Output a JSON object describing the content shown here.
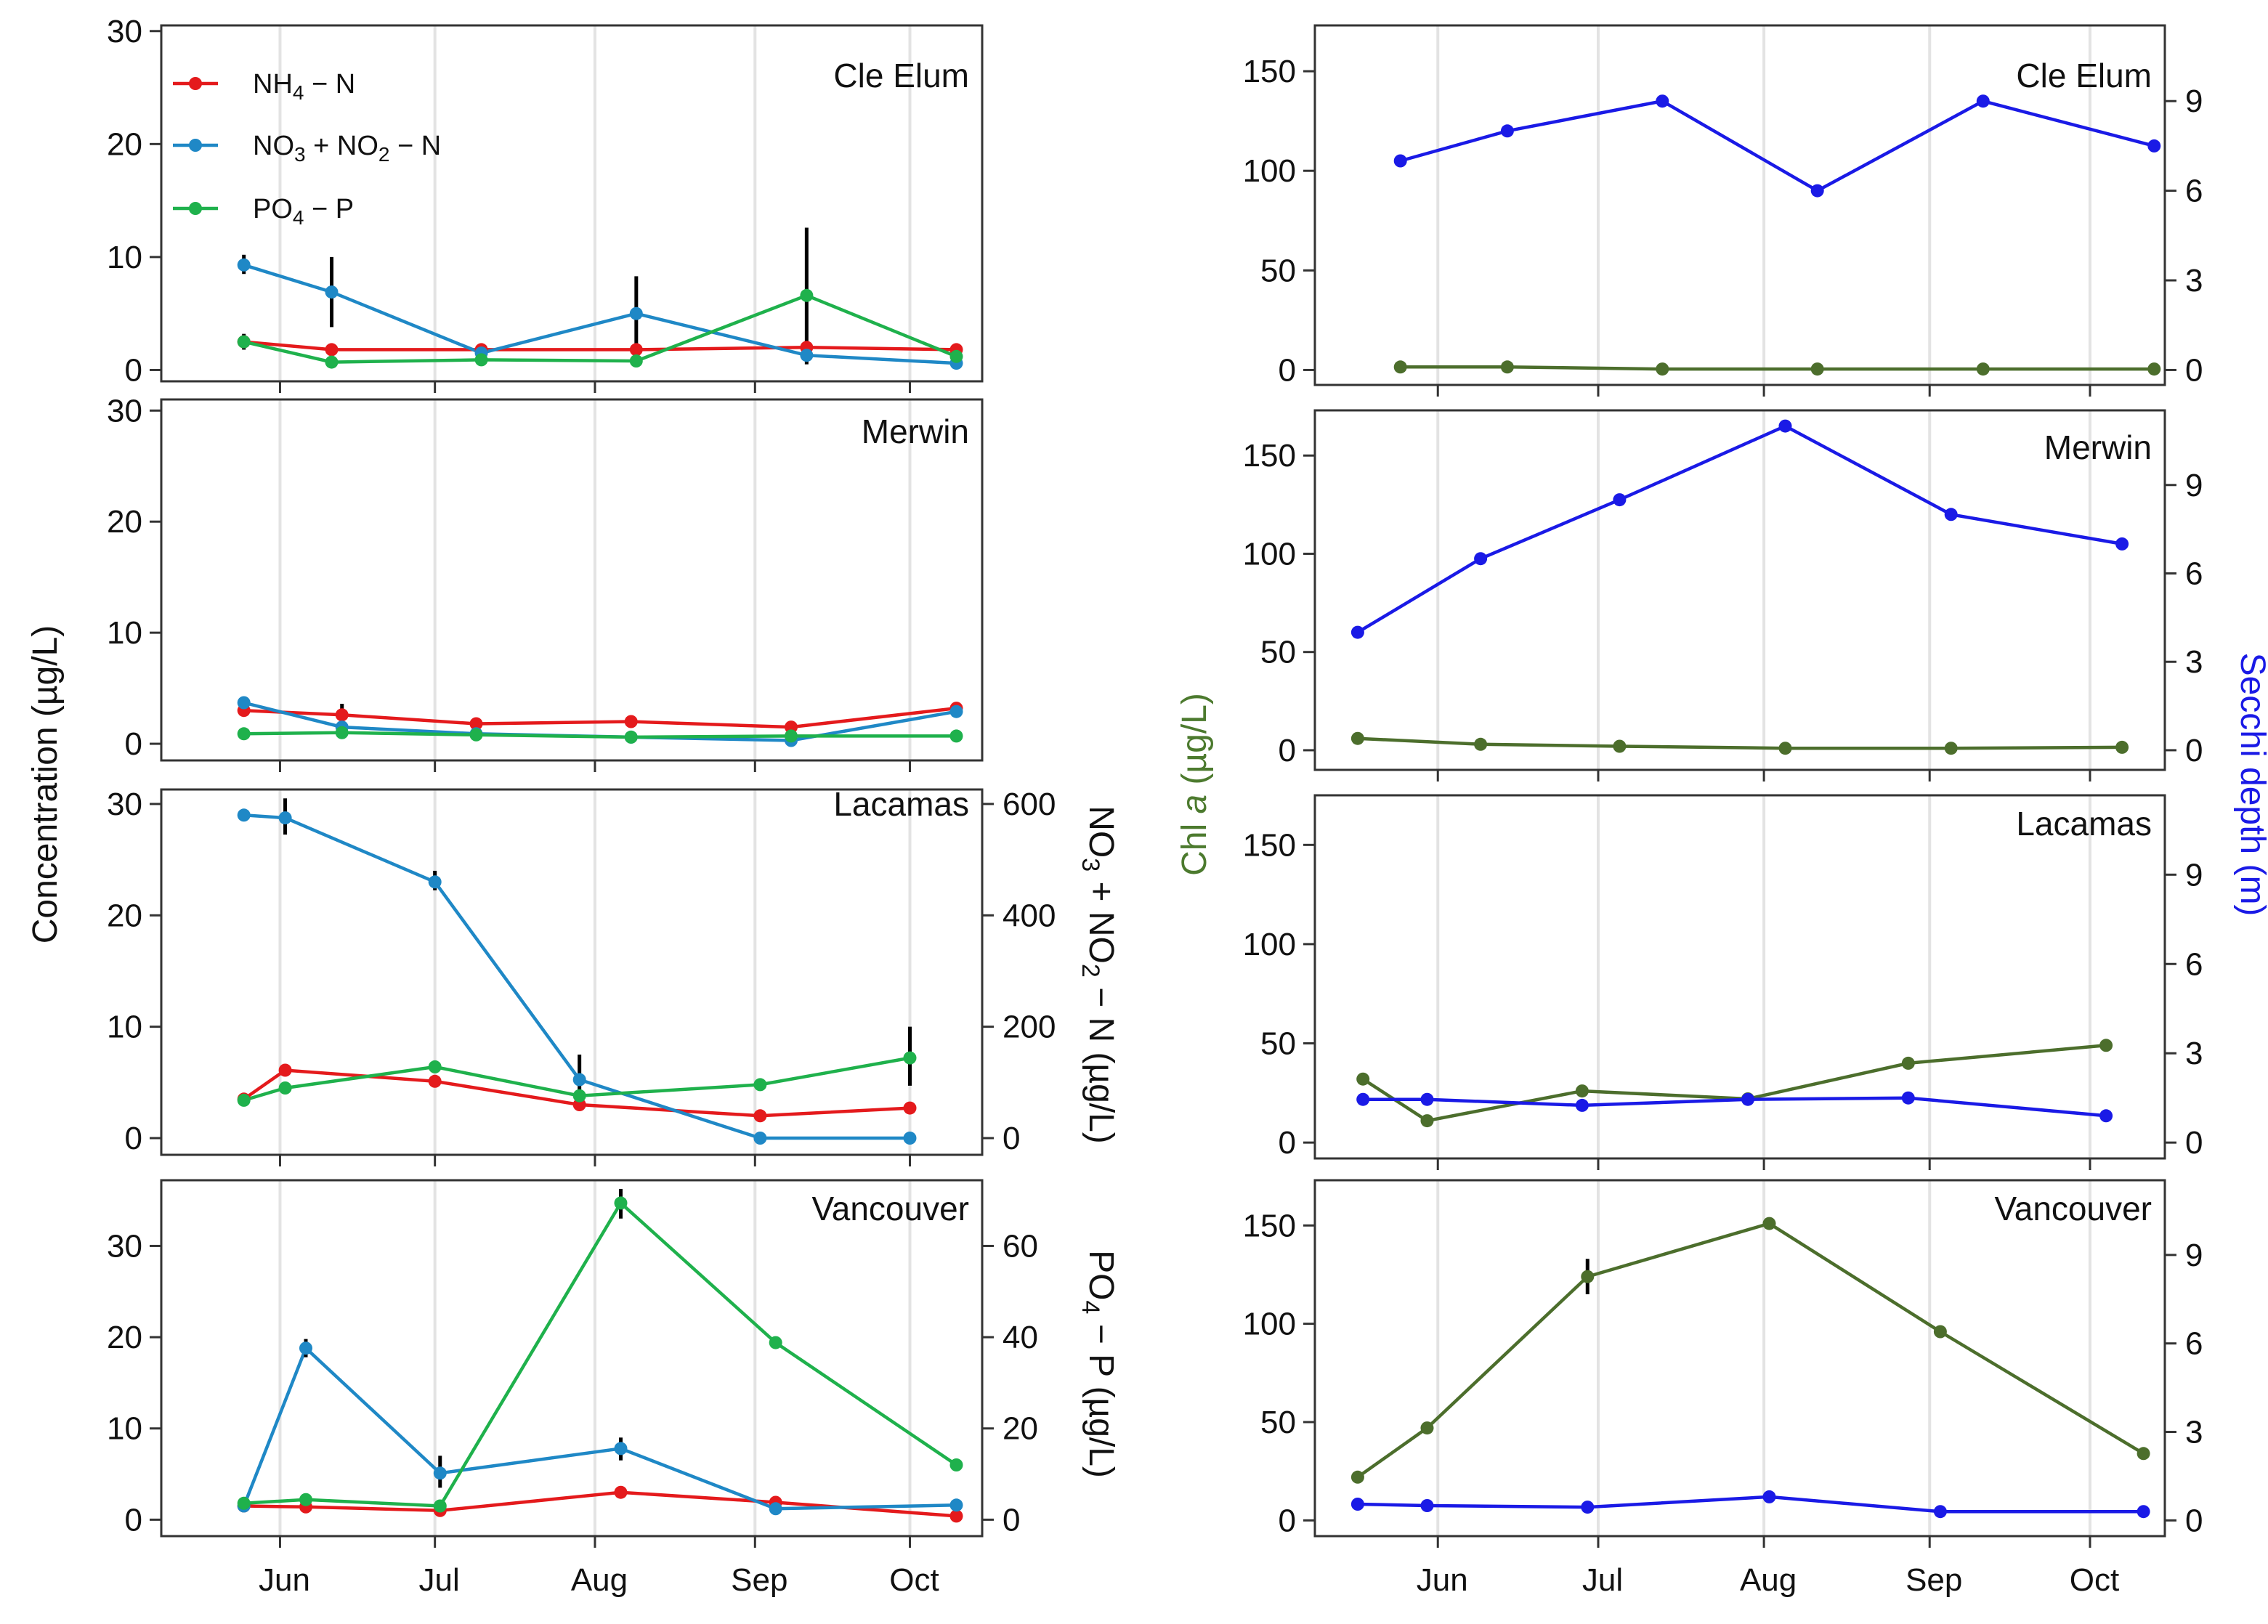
{
  "chart_data": [
    {
      "type": "line",
      "id": "L1",
      "title": "Cle Elum",
      "ylim": [
        -1,
        30.5
      ],
      "yticks": [
        0,
        10,
        20,
        30
      ],
      "xlim": [
        129,
        288
      ],
      "x_ticks": {
        "labels": [
          "Jun",
          "Jul",
          "Aug",
          "Sep",
          "Oct"
        ],
        "positions": [
          152,
          182,
          213,
          244,
          274
        ]
      },
      "series": [
        {
          "name": "NH4-N",
          "color": "#e41a1c",
          "x": [
            145,
            162,
            191,
            221,
            254,
            283
          ],
          "y": [
            2.5,
            1.8,
            1.8,
            1.8,
            2.0,
            1.8
          ]
        },
        {
          "name": "NO3+NO2-N",
          "color": "#1f88c6",
          "x": [
            145,
            162,
            191,
            221,
            254,
            283
          ],
          "y": [
            9.3,
            6.9,
            1.5,
            5.0,
            1.3,
            0.6
          ]
        },
        {
          "name": "PO4-P",
          "color": "#1fb14c",
          "x": [
            145,
            162,
            191,
            221,
            254,
            283
          ],
          "y": [
            2.5,
            0.7,
            0.9,
            0.8,
            6.6,
            1.2
          ]
        }
      ],
      "error_bars": [
        {
          "x": 145,
          "low": 8.5,
          "high": 10.2
        },
        {
          "x": 162,
          "low": 3.8,
          "high": 10.0
        },
        {
          "x": 221,
          "low": 1.0,
          "high": 8.3
        },
        {
          "x": 254,
          "low": 0.5,
          "high": 12.6
        },
        {
          "x": 145,
          "low": 1.8,
          "high": 3.2
        }
      ]
    },
    {
      "type": "line",
      "id": "L2",
      "title": "Merwin",
      "ylim": [
        -1.5,
        31
      ],
      "yticks": [
        0,
        10,
        20,
        30
      ],
      "xlim": [
        129,
        288
      ],
      "x_ticks": {
        "labels": [
          "Jun",
          "Jul",
          "Aug",
          "Sep",
          "Oct"
        ],
        "positions": [
          152,
          182,
          213,
          244,
          274
        ]
      },
      "series": [
        {
          "name": "NH4-N",
          "color": "#e41a1c",
          "x": [
            145,
            164,
            190,
            220,
            251,
            283
          ],
          "y": [
            3.0,
            2.6,
            1.8,
            2.0,
            1.5,
            3.2
          ]
        },
        {
          "name": "NO3+NO2-N",
          "color": "#1f88c6",
          "x": [
            145,
            164,
            190,
            220,
            251,
            283
          ],
          "y": [
            3.7,
            1.5,
            0.9,
            0.6,
            0.3,
            2.9
          ]
        },
        {
          "name": "PO4-P",
          "color": "#1fb14c",
          "x": [
            145,
            164,
            190,
            220,
            251,
            283
          ],
          "y": [
            0.9,
            1.0,
            0.8,
            0.6,
            0.7,
            0.7
          ]
        }
      ],
      "error_bars": [
        {
          "x": 164,
          "low": 1.9,
          "high": 3.6
        }
      ]
    },
    {
      "type": "line",
      "id": "L3",
      "title": "Lacamas",
      "ylim": [
        -1.5,
        31.3
      ],
      "yticks": [
        0,
        10,
        20,
        30
      ],
      "right_axis": {
        "label": "NO3+NO2-N (µg/L)",
        "ylim": [
          -30,
          626
        ],
        "yticks": [
          0,
          200,
          400,
          600
        ]
      },
      "xlim": [
        129,
        288
      ],
      "x_ticks": {
        "labels": [
          "Jun",
          "Jul",
          "Aug",
          "Sep",
          "Oct"
        ],
        "positions": [
          152,
          182,
          213,
          244,
          274
        ]
      },
      "series": [
        {
          "name": "NH4-N",
          "color": "#e41a1c",
          "x": [
            145,
            153,
            182,
            210,
            245,
            274
          ],
          "y": [
            3.5,
            6.1,
            5.1,
            3.0,
            2.0,
            2.7
          ]
        },
        {
          "name": "NO3+NO2-N",
          "color": "#1f88c6",
          "axis": "right",
          "x": [
            145,
            153,
            182,
            210,
            245,
            274
          ],
          "y": [
            580,
            575,
            460,
            105,
            0,
            0
          ]
        },
        {
          "name": "PO4-P",
          "color": "#1fb14c",
          "x": [
            145,
            153,
            182,
            210,
            245,
            274
          ],
          "y": [
            3.4,
            4.5,
            6.4,
            3.8,
            4.8,
            7.2
          ]
        }
      ],
      "error_bars": [
        {
          "x": 153,
          "axis": "right",
          "low": 545,
          "high": 610
        },
        {
          "x": 182,
          "axis": "right",
          "low": 445,
          "high": 480
        },
        {
          "x": 210,
          "axis": "right",
          "low": 80,
          "high": 150
        },
        {
          "x": 274,
          "low": 4.7,
          "high": 10.0
        }
      ]
    },
    {
      "type": "line",
      "id": "L4",
      "title": "Vancouver",
      "ylim": [
        -1.8,
        37.2
      ],
      "yticks": [
        0,
        10,
        20,
        30
      ],
      "right_axis": {
        "label": "PO4-P (µg/L)",
        "ylim": [
          -3.6,
          74.4
        ],
        "yticks": [
          0,
          20,
          40,
          60
        ]
      },
      "xlim": [
        129,
        288
      ],
      "x_ticks": {
        "labels": [
          "Jun",
          "Jul",
          "Aug",
          "Sep",
          "Oct"
        ],
        "positions": [
          152,
          182,
          213,
          244,
          274
        ]
      },
      "series": [
        {
          "name": "NH4-N",
          "color": "#e41a1c",
          "x": [
            145,
            157,
            183,
            218,
            248,
            283
          ],
          "y": [
            1.5,
            1.4,
            1.0,
            3.0,
            1.9,
            0.4
          ]
        },
        {
          "name": "NO3+NO2-N",
          "color": "#1f88c6",
          "x": [
            145,
            157,
            183,
            218,
            248,
            283
          ],
          "y": [
            1.5,
            18.8,
            5.1,
            7.8,
            1.2,
            1.6
          ]
        },
        {
          "name": "PO4-P",
          "color": "#1fb14c",
          "axis": "right",
          "x": [
            145,
            157,
            183,
            218,
            248,
            283
          ],
          "y": [
            3.6,
            4.4,
            3.0,
            69.4,
            38.8,
            12.0
          ]
        }
      ],
      "error_bars": [
        {
          "x": 157,
          "low": 17.8,
          "high": 19.8
        },
        {
          "x": 183,
          "low": 3.5,
          "high": 7.0
        },
        {
          "x": 218,
          "low": 6.5,
          "high": 9.0
        },
        {
          "x": 218,
          "axis": "right",
          "low": 66.0,
          "high": 72.5
        }
      ]
    },
    {
      "type": "line",
      "id": "R1",
      "title": "Cle Elum",
      "ylim": [
        -7.5,
        173
      ],
      "yticks": [
        0,
        50,
        100,
        150
      ],
      "right_axis": {
        "ylim": [
          -0.5,
          11.533
        ],
        "yticks": [
          0,
          3,
          6,
          9
        ]
      },
      "xlim": [
        129,
        288
      ],
      "x_ticks": {
        "labels": [
          "Jun",
          "Jul",
          "Aug",
          "Sep",
          "Oct"
        ],
        "positions": [
          152,
          182,
          213,
          244,
          274
        ]
      },
      "series": [
        {
          "name": "Chl a",
          "color": "#4c6e2c",
          "x": [
            145,
            165,
            194,
            223,
            254,
            286
          ],
          "y": [
            1.5,
            1.5,
            0.5,
            0.5,
            0.5,
            0.5
          ]
        },
        {
          "name": "Secchi depth",
          "color": "#1a1ae6",
          "axis": "right",
          "x": [
            145,
            165,
            194,
            223,
            254,
            286
          ],
          "y": [
            7.0,
            8.0,
            9.0,
            6.0,
            9.0,
            7.5
          ]
        }
      ],
      "error_bars": []
    },
    {
      "type": "line",
      "id": "R2",
      "title": "Merwin",
      "ylim": [
        -10,
        173
      ],
      "yticks": [
        0,
        50,
        100,
        150
      ],
      "right_axis": {
        "ylim": [
          -0.667,
          11.533
        ],
        "yticks": [
          0,
          3,
          6,
          9
        ]
      },
      "xlim": [
        129,
        288
      ],
      "x_ticks": {
        "labels": [
          "Jun",
          "Jul",
          "Aug",
          "Sep",
          "Oct"
        ],
        "positions": [
          152,
          182,
          213,
          244,
          274
        ]
      },
      "series": [
        {
          "name": "Chl a",
          "color": "#4c6e2c",
          "x": [
            137,
            160,
            186,
            217,
            248,
            280
          ],
          "y": [
            6,
            3,
            2,
            1,
            1,
            1.5
          ]
        },
        {
          "name": "Secchi depth",
          "color": "#1a1ae6",
          "axis": "right",
          "x": [
            137,
            160,
            186,
            217,
            248,
            280
          ],
          "y": [
            4.0,
            6.5,
            8.5,
            11.0,
            8.0,
            7.0
          ]
        }
      ],
      "error_bars": []
    },
    {
      "type": "line",
      "id": "R3",
      "title": "Lacamas",
      "ylim": [
        -8,
        175
      ],
      "yticks": [
        0,
        50,
        100,
        150
      ],
      "right_axis": {
        "ylim": [
          -0.533,
          11.667
        ],
        "yticks": [
          0,
          3,
          6,
          9
        ]
      },
      "xlim": [
        129,
        288
      ],
      "x_ticks": {
        "labels": [
          "Jun",
          "Jul",
          "Aug",
          "Sep",
          "Oct"
        ],
        "positions": [
          152,
          182,
          213,
          244,
          274
        ]
      },
      "series": [
        {
          "name": "Chl a",
          "color": "#4c6e2c",
          "x": [
            138,
            150,
            179,
            210,
            240,
            277
          ],
          "y": [
            32,
            11,
            26,
            22,
            40,
            49
          ]
        },
        {
          "name": "Secchi depth",
          "color": "#1a1ae6",
          "axis": "right",
          "x": [
            138,
            150,
            179,
            210,
            240,
            277
          ],
          "y": [
            1.45,
            1.45,
            1.25,
            1.45,
            1.5,
            0.9
          ]
        }
      ],
      "error_bars": []
    },
    {
      "type": "line",
      "id": "R4",
      "title": "Vancouver",
      "ylim": [
        -8,
        173
      ],
      "yticks": [
        0,
        50,
        100,
        150
      ],
      "right_axis": {
        "ylim": [
          -0.533,
          11.533
        ],
        "yticks": [
          0,
          3,
          6,
          9
        ]
      },
      "xlim": [
        129,
        288
      ],
      "x_ticks": {
        "labels": [
          "Jun",
          "Jul",
          "Aug",
          "Sep",
          "Oct"
        ],
        "positions": [
          152,
          182,
          213,
          244,
          274
        ]
      },
      "series": [
        {
          "name": "Chl a",
          "color": "#4c6e2c",
          "x": [
            137,
            150,
            180,
            214,
            246,
            284
          ],
          "y": [
            22,
            47,
            124,
            151,
            96,
            34
          ]
        },
        {
          "name": "Secchi depth",
          "color": "#1a1ae6",
          "axis": "right",
          "x": [
            137,
            150,
            180,
            214,
            246,
            284
          ],
          "y": [
            0.55,
            0.5,
            0.45,
            0.8,
            0.3,
            0.3
          ]
        }
      ],
      "error_bars": [
        {
          "x": 180,
          "low": 115,
          "high": 133
        }
      ]
    }
  ],
  "labels": {
    "left_ylabel": "Concentration (µg/L)",
    "chl_label_prefix": "Chl ",
    "chl_label_italic": "a",
    "chl_label_suffix": " (µg/L)",
    "secchi_label": "Secchi depth (m)",
    "nox_label": "NO3+NO2-N (µg/L)",
    "po4_label": "PO4-P (µg/L)"
  },
  "legend": {
    "placement": "top-left",
    "items": [
      {
        "label": "NH4-N",
        "color": "#e41a1c"
      },
      {
        "label": "NO3+NO2-N",
        "color": "#1f88c6"
      },
      {
        "label": "PO4-P",
        "color": "#1fb14c"
      }
    ]
  }
}
